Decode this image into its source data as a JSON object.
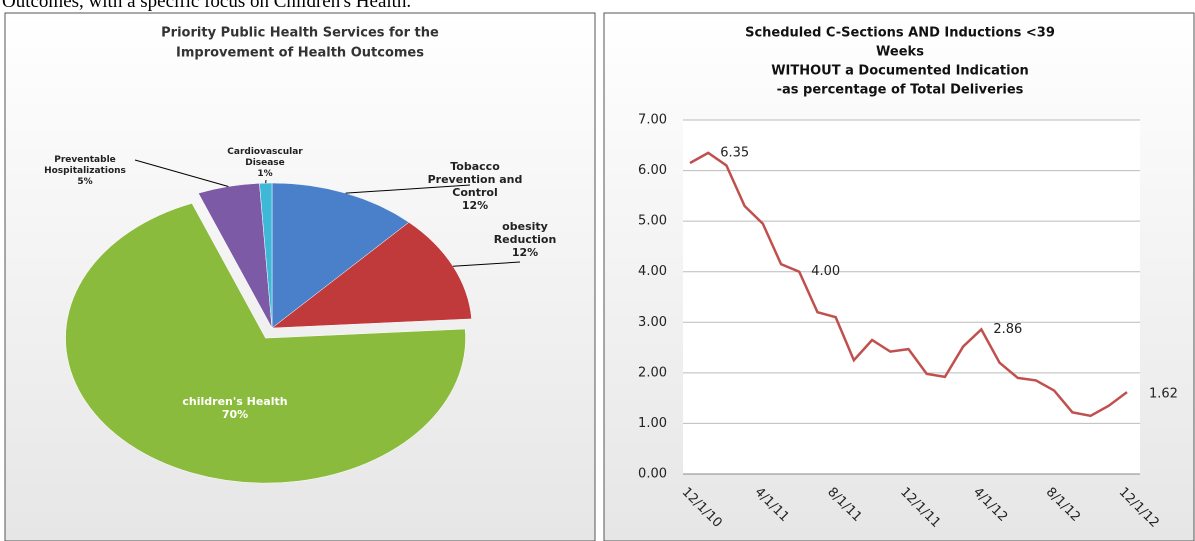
{
  "caption": "Outcomes, with a specific focus on Children's Health.",
  "chart_data": [
    {
      "type": "pie",
      "title": [
        "Priority Public Health Services for the",
        "Improvement of Health Outcomes"
      ],
      "categories": [
        "Tobacco Prevention and Control",
        "obesity Reduction",
        "children's Health",
        "Preventable Hospitalizations",
        "Cardiovascular Disease"
      ],
      "values": [
        12,
        12,
        70,
        5,
        1
      ],
      "value_labels": [
        "12%",
        "12%",
        "70%",
        "5%",
        "1%"
      ],
      "colors": [
        "#4a7fc9",
        "#c0393b",
        "#8bbb3c",
        "#7c5aa6",
        "#3fb8d8"
      ]
    },
    {
      "type": "line",
      "title": [
        "Scheduled C-Sections AND Inductions <39",
        "Weeks",
        "WITHOUT a Documented Indication",
        "-as percentage of Total Deliveries"
      ],
      "categories": [
        "12/1/10",
        null,
        null,
        null,
        "4/1/11",
        null,
        null,
        null,
        "8/1/11",
        null,
        null,
        null,
        "12/1/11",
        null,
        null,
        null,
        "4/1/12",
        null,
        null,
        null,
        "8/1/12",
        null,
        null,
        null,
        "12/1/12"
      ],
      "series": [
        {
          "name": null,
          "color": "#c0504d",
          "values": [
            6.15,
            6.35,
            6.1,
            5.3,
            4.95,
            4.15,
            4.0,
            3.2,
            3.1,
            2.25,
            2.65,
            2.42,
            2.47,
            1.98,
            1.92,
            2.52,
            2.86,
            2.2,
            1.9,
            1.85,
            1.65,
            1.22,
            1.15,
            1.35,
            1.62
          ],
          "value_labels": [
            null,
            "6.35",
            null,
            null,
            null,
            null,
            "4.00",
            null,
            null,
            null,
            null,
            null,
            null,
            null,
            null,
            null,
            "2.86",
            null,
            null,
            null,
            null,
            null,
            null,
            null,
            "1.62"
          ]
        }
      ],
      "ylim": [
        0,
        7
      ],
      "yticks": [
        {
          "value": 0,
          "label": "0.00"
        },
        {
          "value": 1,
          "label": "1.00"
        },
        {
          "value": 2,
          "label": "2.00"
        },
        {
          "value": 3,
          "label": "3.00"
        },
        {
          "value": 4,
          "label": "4.00"
        },
        {
          "value": 5,
          "label": "5.00"
        },
        {
          "value": 6,
          "label": "6.00"
        },
        {
          "value": 7,
          "label": "7.00"
        }
      ],
      "grid": true
    }
  ]
}
